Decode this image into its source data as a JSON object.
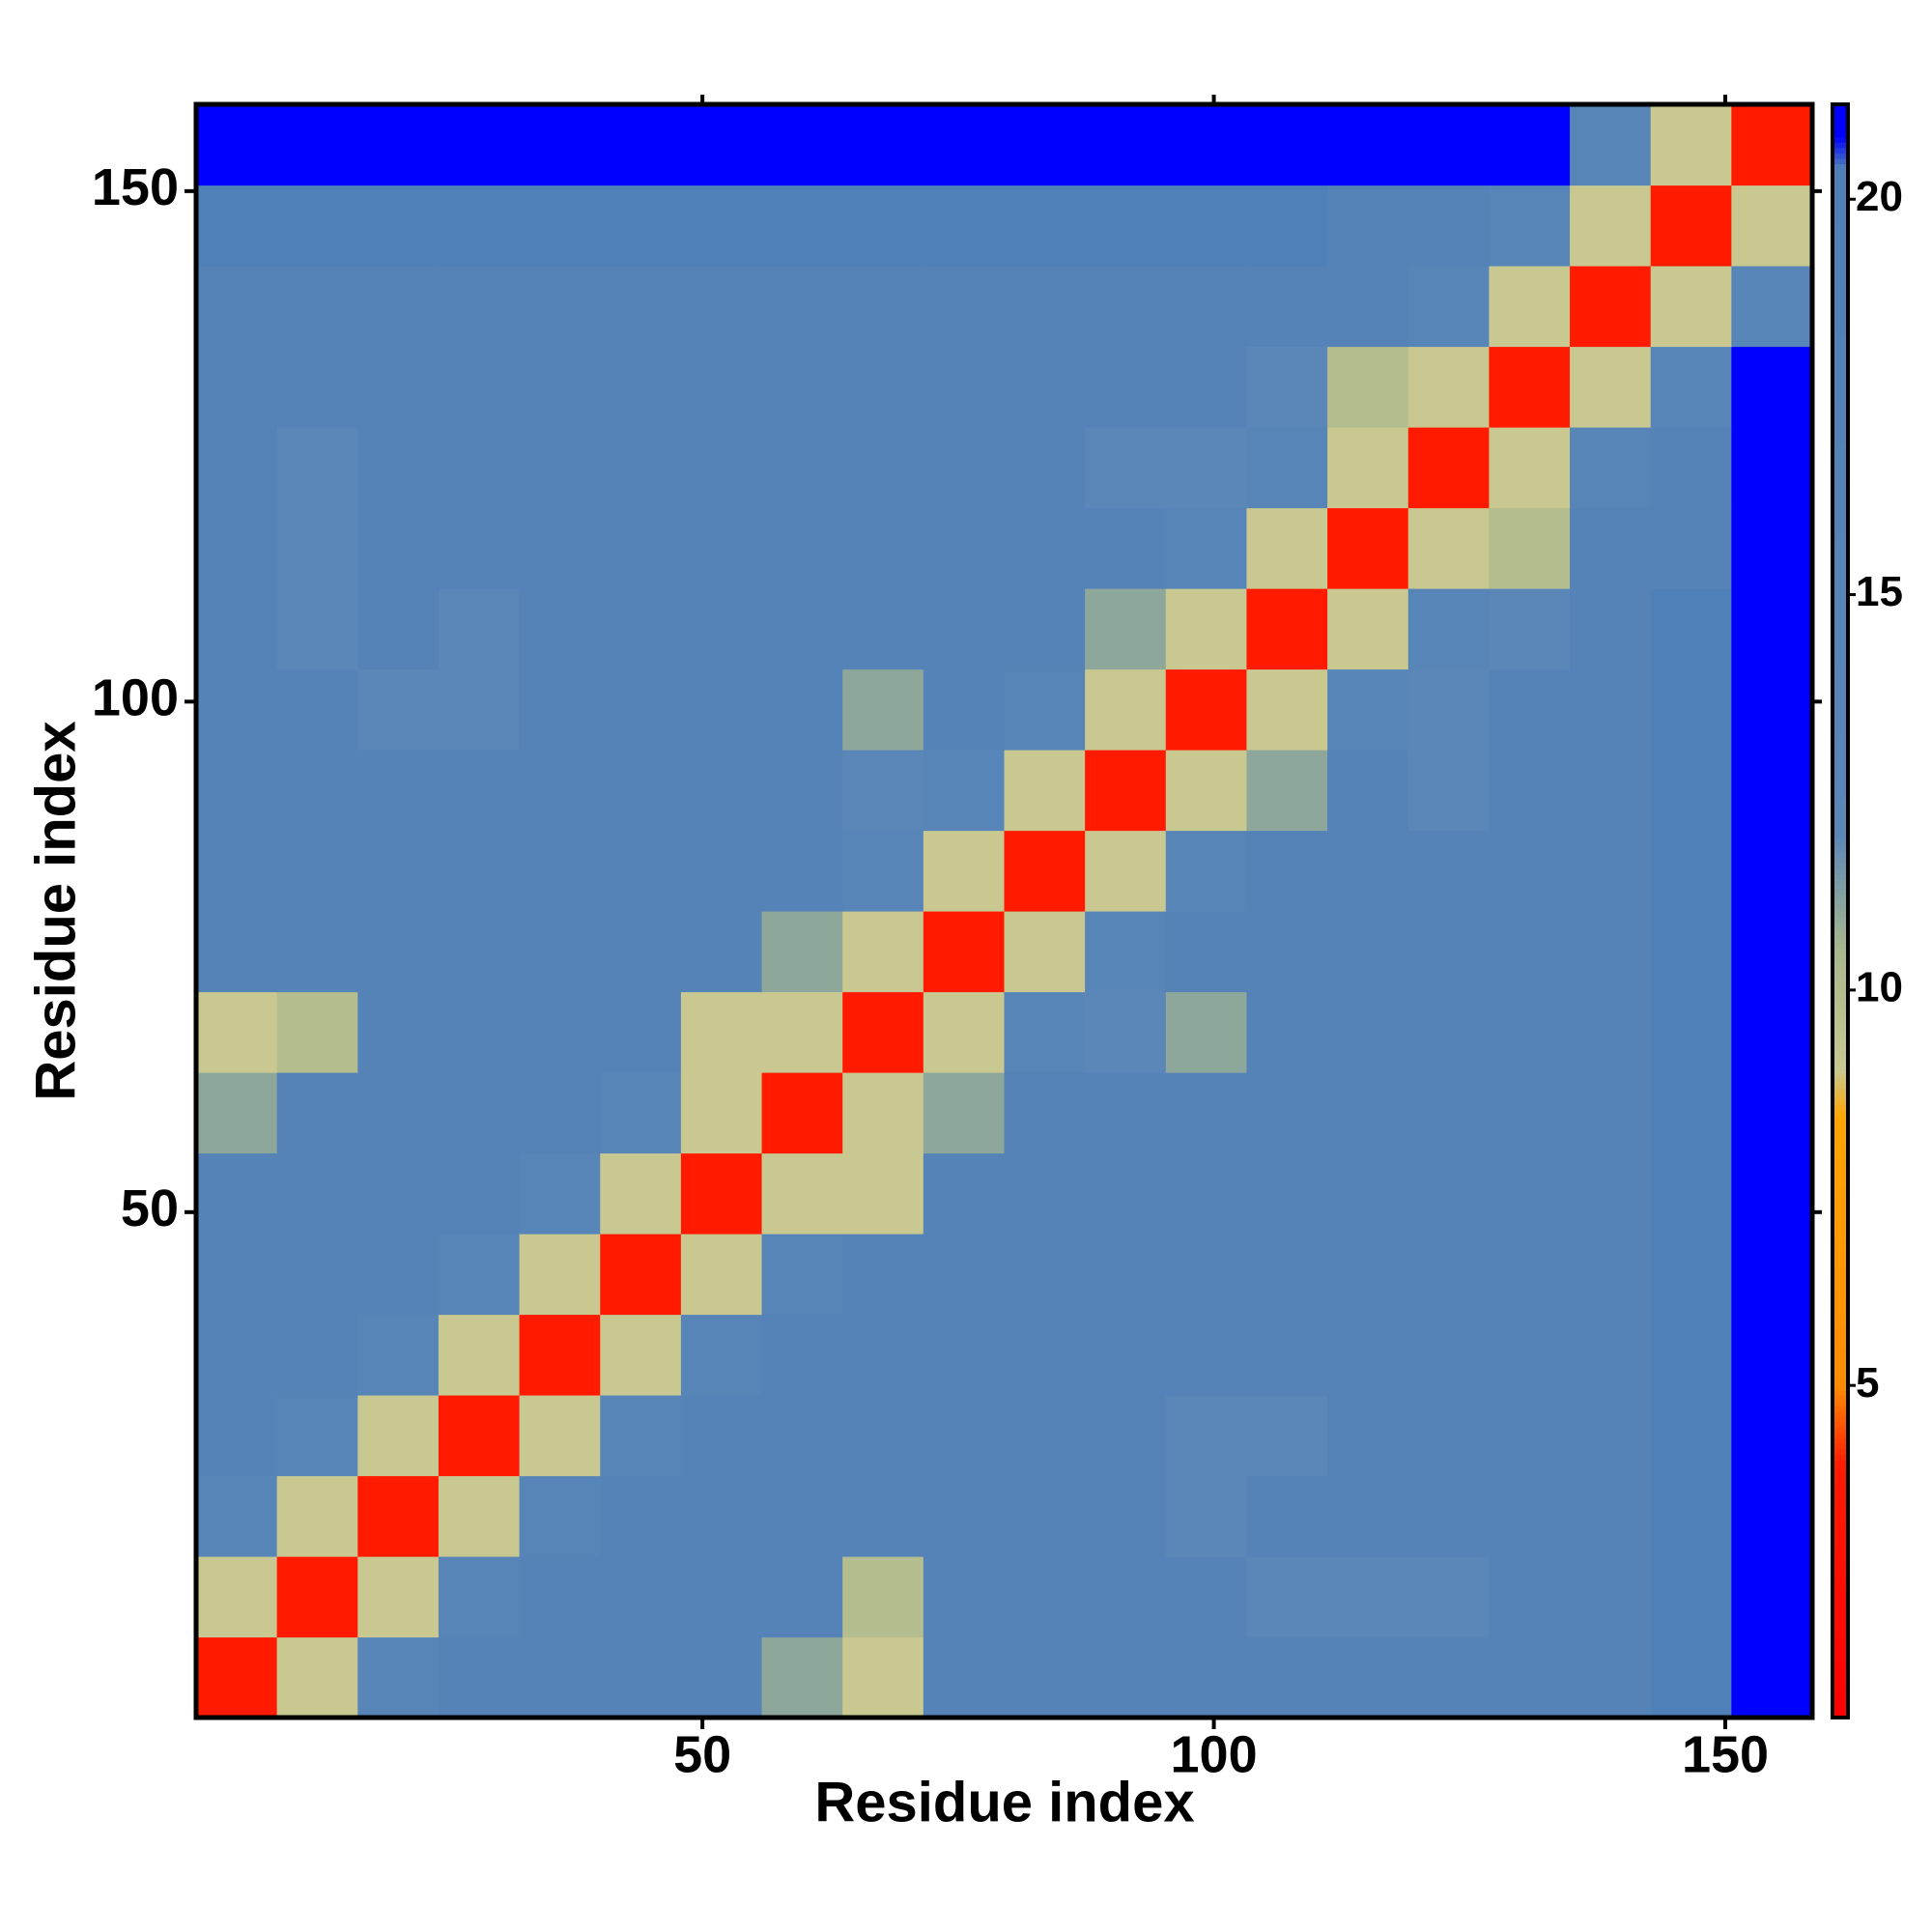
{
  "chart_data": {
    "type": "heatmap",
    "x_label": "Residue index",
    "y_label": "Residue index",
    "xlim": [
      0.5,
      158.5
    ],
    "ylim": [
      0.5,
      158.5
    ],
    "xticks": [
      50,
      100,
      150
    ],
    "yticks": [
      50,
      100,
      150
    ],
    "xbins": [
      0.5,
      8.4,
      16.3,
      24.2,
      32.1,
      40,
      47.9,
      55.8,
      63.7,
      71.6,
      79.5,
      87.4,
      95.3,
      103.2,
      111.1,
      119,
      126.9,
      134.8,
      142.7,
      150.6,
      158.5
    ],
    "ybins": [
      0.5,
      8.4,
      16.3,
      24.2,
      32.1,
      40,
      47.9,
      55.8,
      63.7,
      71.6,
      79.5,
      87.4,
      95.3,
      103.2,
      111.1,
      119,
      126.9,
      134.8,
      142.7,
      150.6,
      158.5
    ],
    "z": [
      [
        4,
        9,
        14,
        16,
        16,
        16,
        16,
        11,
        9,
        16,
        16,
        16,
        16,
        16,
        16,
        16,
        16,
        16,
        20,
        21
      ],
      [
        9,
        4,
        9,
        14,
        16,
        16,
        16,
        16,
        10,
        16,
        16,
        16,
        16,
        12,
        12,
        12,
        16,
        16,
        20,
        21
      ],
      [
        14,
        9,
        4,
        9,
        14,
        16,
        16,
        16,
        16,
        16,
        16,
        16,
        12,
        16,
        16,
        16,
        16,
        16,
        20,
        21
      ],
      [
        16,
        14,
        9,
        4,
        9,
        14,
        16,
        16,
        16,
        16,
        16,
        16,
        12,
        12,
        16,
        16,
        16,
        16,
        20,
        21
      ],
      [
        16,
        16,
        14,
        9,
        4,
        9,
        14,
        16,
        16,
        16,
        16,
        16,
        16,
        16,
        16,
        16,
        16,
        16,
        20,
        21
      ],
      [
        16,
        16,
        16,
        14,
        9,
        4,
        9,
        14,
        16,
        16,
        16,
        16,
        16,
        16,
        16,
        16,
        16,
        16,
        20,
        21
      ],
      [
        16,
        16,
        16,
        16,
        14,
        9,
        4,
        9,
        9,
        16,
        16,
        16,
        16,
        16,
        16,
        16,
        16,
        16,
        20,
        21
      ],
      [
        11,
        16,
        16,
        16,
        16,
        14,
        9,
        4,
        9,
        11,
        16,
        16,
        16,
        16,
        16,
        16,
        16,
        16,
        20,
        21
      ],
      [
        9,
        10,
        16,
        16,
        16,
        16,
        9,
        9,
        4,
        9,
        14,
        12,
        11,
        16,
        16,
        16,
        16,
        16,
        20,
        21
      ],
      [
        16,
        16,
        16,
        16,
        16,
        16,
        16,
        11,
        9,
        4,
        9,
        14,
        16,
        16,
        16,
        16,
        16,
        16,
        20,
        21
      ],
      [
        16,
        16,
        16,
        16,
        16,
        16,
        16,
        16,
        14,
        9,
        4,
        9,
        14,
        16,
        16,
        16,
        16,
        16,
        20,
        21
      ],
      [
        16,
        16,
        16,
        16,
        16,
        16,
        16,
        16,
        12,
        14,
        9,
        4,
        9,
        11,
        16,
        12,
        16,
        16,
        20,
        21
      ],
      [
        16,
        16,
        12,
        12,
        16,
        16,
        16,
        16,
        11,
        16,
        14,
        9,
        4,
        9,
        14,
        12,
        16,
        16,
        20,
        21
      ],
      [
        16,
        12,
        16,
        12,
        16,
        16,
        16,
        16,
        16,
        16,
        16,
        11,
        9,
        4,
        9,
        14,
        12,
        16,
        20,
        21
      ],
      [
        16,
        12,
        16,
        16,
        16,
        16,
        16,
        16,
        16,
        16,
        16,
        16,
        14,
        9,
        4,
        9,
        10,
        16,
        16,
        21
      ],
      [
        16,
        12,
        16,
        16,
        16,
        16,
        16,
        16,
        16,
        16,
        16,
        12,
        12,
        14,
        9,
        4,
        9,
        14,
        16,
        21
      ],
      [
        16,
        16,
        16,
        16,
        16,
        16,
        16,
        16,
        16,
        16,
        16,
        16,
        16,
        12,
        10,
        9,
        4,
        9,
        14,
        21
      ],
      [
        16,
        16,
        16,
        16,
        16,
        16,
        16,
        16,
        16,
        16,
        16,
        16,
        16,
        16,
        16,
        14,
        9,
        4,
        9,
        14
      ],
      [
        20,
        20,
        20,
        20,
        20,
        20,
        20,
        20,
        20,
        20,
        20,
        20,
        20,
        20,
        16,
        16,
        14,
        9,
        4,
        9
      ],
      [
        21,
        21,
        21,
        21,
        21,
        21,
        21,
        21,
        21,
        21,
        21,
        21,
        21,
        21,
        21,
        21,
        21,
        14,
        9,
        4
      ]
    ],
    "clim": [
      0.8,
      21.2
    ],
    "cticks": [
      5,
      10,
      15,
      20
    ],
    "colorscale": [
      [
        0.8,
        "#ff0000"
      ],
      [
        4,
        "#ff1a00"
      ],
      [
        5,
        "#ff8c00"
      ],
      [
        8.4,
        "#ffa500"
      ],
      [
        9,
        "#c8c890"
      ],
      [
        10.5,
        "#a8b88c"
      ],
      [
        12,
        "#5a86b8"
      ],
      [
        20.4,
        "#5080b8"
      ],
      [
        20.8,
        "#0000ff"
      ],
      [
        21.2,
        "#0000ff"
      ]
    ]
  }
}
